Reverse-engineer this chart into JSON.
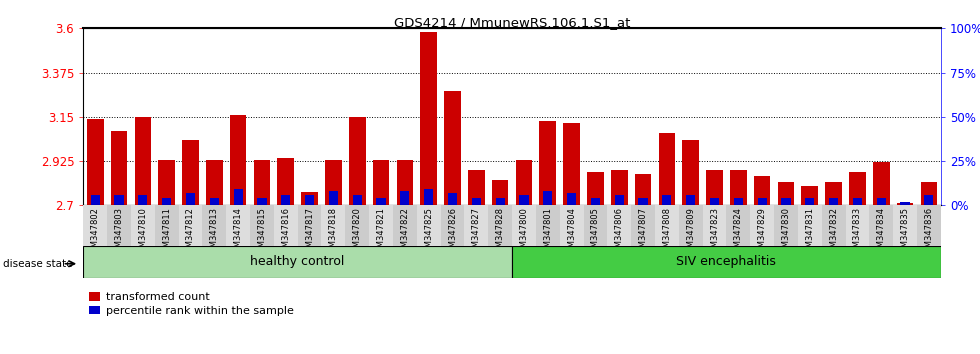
{
  "title": "GDS4214 / MmunewRS.106.1.S1_at",
  "samples": [
    "GSM347802",
    "GSM347803",
    "GSM347810",
    "GSM347811",
    "GSM347812",
    "GSM347813",
    "GSM347814",
    "GSM347815",
    "GSM347816",
    "GSM347817",
    "GSM347818",
    "GSM347820",
    "GSM347821",
    "GSM347822",
    "GSM347825",
    "GSM347826",
    "GSM347827",
    "GSM347828",
    "GSM347800",
    "GSM347801",
    "GSM347804",
    "GSM347805",
    "GSM347806",
    "GSM347807",
    "GSM347808",
    "GSM347809",
    "GSM347823",
    "GSM347824",
    "GSM347829",
    "GSM347830",
    "GSM347831",
    "GSM347832",
    "GSM347833",
    "GSM347834",
    "GSM347835",
    "GSM347836"
  ],
  "transformed_count": [
    3.14,
    3.08,
    3.15,
    2.93,
    3.03,
    2.93,
    3.16,
    2.93,
    2.94,
    2.77,
    2.93,
    3.15,
    2.93,
    2.93,
    3.58,
    3.28,
    2.88,
    2.83,
    2.93,
    3.13,
    3.12,
    2.87,
    2.88,
    2.86,
    3.07,
    3.03,
    2.88,
    2.88,
    2.85,
    2.82,
    2.8,
    2.82,
    2.87,
    2.92,
    2.71,
    2.82
  ],
  "percentile_rank": [
    6,
    6,
    6,
    4,
    7,
    4,
    9,
    4,
    6,
    6,
    8,
    6,
    4,
    8,
    9,
    7,
    4,
    4,
    6,
    8,
    7,
    4,
    6,
    4,
    6,
    6,
    4,
    4,
    4,
    4,
    4,
    4,
    4,
    4,
    2,
    6
  ],
  "ymin": 2.7,
  "ymax": 3.6,
  "yticks_left": [
    2.7,
    2.925,
    3.15,
    3.375,
    3.6
  ],
  "yticks_right_vals": [
    0,
    25,
    50,
    75,
    100
  ],
  "bar_color_red": "#cc0000",
  "bar_color_blue": "#0000cc",
  "n_healthy": 18,
  "healthy_label": "healthy control",
  "siv_label": "SIV encephalitis",
  "disease_label": "disease state",
  "legend_red": "transformed count",
  "legend_blue": "percentile rank within the sample",
  "healthy_color": "#aaddaa",
  "siv_color": "#44cc44",
  "xtick_bg_light": "#dddddd",
  "xtick_bg_dark": "#cccccc"
}
